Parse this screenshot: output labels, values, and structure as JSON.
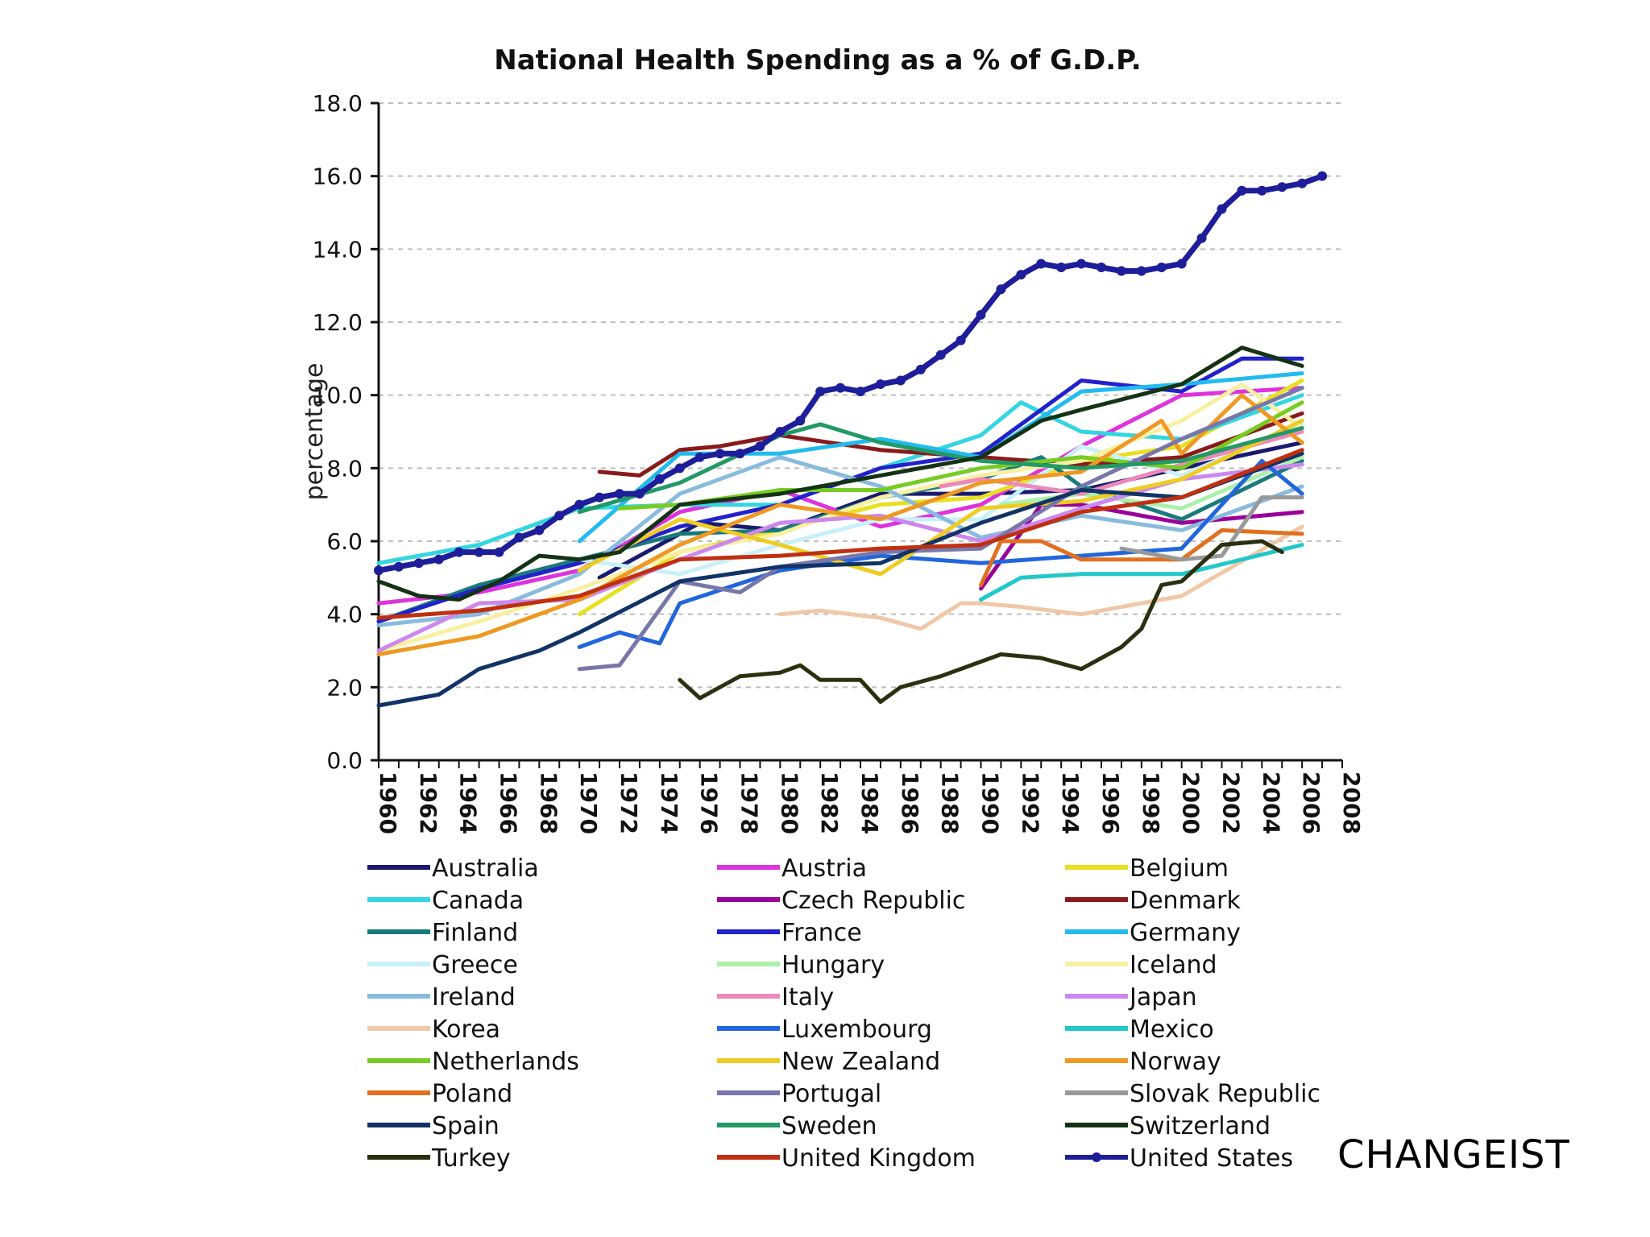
{
  "watermark": "CHANGEIST",
  "chart_data": {
    "type": "line",
    "title": "National Health Spending as a % of G.D.P.",
    "xlabel": "",
    "ylabel": "percentage",
    "ylim": [
      0,
      18
    ],
    "xlim": [
      1960,
      2008
    ],
    "yticks": [
      "0.0",
      "2.0",
      "4.0",
      "6.0",
      "8.0",
      "10.0",
      "12.0",
      "14.0",
      "16.0",
      "18.0"
    ],
    "xticks": [
      "1960",
      "1962",
      "1964",
      "1966",
      "1968",
      "1970",
      "1972",
      "1974",
      "1976",
      "1978",
      "1980",
      "1982",
      "1984",
      "1986",
      "1988",
      "1990",
      "1992",
      "1994",
      "1996",
      "1998",
      "2000",
      "2002",
      "2004",
      "2006",
      "2008"
    ],
    "grid": "horizontal dashed",
    "legend_position": "bottom",
    "series": [
      {
        "name": "Australia",
        "color": "#1a1a6e",
        "x": [
          1971,
          1976,
          1980,
          1985,
          1990,
          1995,
          2000,
          2006
        ],
        "values": [
          5.0,
          6.5,
          6.3,
          7.3,
          7.3,
          7.4,
          8.0,
          8.7
        ]
      },
      {
        "name": "Austria",
        "color": "#dd33dd",
        "x": [
          1960,
          1965,
          1970,
          1975,
          1980,
          1985,
          1990,
          1995,
          2000,
          2006
        ],
        "values": [
          4.3,
          4.6,
          5.2,
          6.8,
          7.4,
          6.4,
          7.0,
          8.6,
          10.0,
          10.2
        ]
      },
      {
        "name": "Belgium",
        "color": "#e8e020",
        "x": [
          1970,
          1975,
          1980,
          1985,
          1990,
          1995,
          2000,
          2006
        ],
        "values": [
          4.0,
          5.7,
          6.3,
          7.0,
          7.2,
          8.2,
          8.6,
          10.4
        ]
      },
      {
        "name": "Canada",
        "color": "#33d6e0",
        "x": [
          1960,
          1965,
          1970,
          1975,
          1980,
          1985,
          1990,
          1992,
          1995,
          2000,
          2006
        ],
        "values": [
          5.4,
          5.9,
          6.9,
          7.0,
          7.0,
          8.0,
          8.9,
          9.8,
          9.0,
          8.8,
          10.0
        ]
      },
      {
        "name": "Czech Republic",
        "color": "#990099",
        "x": [
          1990,
          1993,
          1995,
          2000,
          2006
        ],
        "values": [
          4.7,
          7.0,
          7.0,
          6.5,
          6.8
        ]
      },
      {
        "name": "Denmark",
        "color": "#8a1a1a",
        "x": [
          1971,
          1973,
          1975,
          1977,
          1980,
          1985,
          1990,
          1995,
          2000,
          2006
        ],
        "values": [
          7.9,
          7.8,
          8.5,
          8.6,
          8.9,
          8.5,
          8.3,
          8.1,
          8.3,
          9.5
        ]
      },
      {
        "name": "Finland",
        "color": "#1a7a7a",
        "x": [
          1960,
          1965,
          1970,
          1975,
          1980,
          1985,
          1990,
          1993,
          1995,
          2000,
          2006
        ],
        "values": [
          3.8,
          4.8,
          5.5,
          6.2,
          6.3,
          7.2,
          7.7,
          8.3,
          7.5,
          6.6,
          8.2
        ]
      },
      {
        "name": "France",
        "color": "#2222cc",
        "x": [
          1960,
          1965,
          1970,
          1975,
          1980,
          1985,
          1990,
          1995,
          2000,
          2003,
          2006
        ],
        "values": [
          3.8,
          4.7,
          5.4,
          6.4,
          7.0,
          8.0,
          8.4,
          10.4,
          10.1,
          11.0,
          11.0
        ]
      },
      {
        "name": "Germany",
        "color": "#22bbee",
        "x": [
          1970,
          1975,
          1980,
          1985,
          1990,
          1995,
          2000,
          2006
        ],
        "values": [
          6.0,
          8.4,
          8.4,
          8.8,
          8.3,
          10.1,
          10.3,
          10.6
        ]
      },
      {
        "name": "Greece",
        "color": "#c8f0f8",
        "x": [
          1970,
          1975,
          1980,
          1985,
          1990,
          1995,
          2000,
          2006
        ],
        "values": [
          5.5,
          5.1,
          5.9,
          6.6,
          6.6,
          8.6,
          7.8,
          9.2
        ]
      },
      {
        "name": "Hungary",
        "color": "#aaf0aa",
        "x": [
          1991,
          1995,
          2000,
          2006
        ],
        "values": [
          7.0,
          7.3,
          6.9,
          8.3
        ]
      },
      {
        "name": "Iceland",
        "color": "#f8f0a0",
        "x": [
          1960,
          1965,
          1970,
          1975,
          1980,
          1985,
          1990,
          1995,
          2000,
          2003,
          2006
        ],
        "values": [
          3.0,
          3.8,
          4.7,
          5.7,
          6.2,
          7.2,
          7.8,
          8.2,
          9.3,
          10.3,
          9.1
        ]
      },
      {
        "name": "Ireland",
        "color": "#88bbdd",
        "x": [
          1960,
          1965,
          1970,
          1975,
          1980,
          1985,
          1990,
          1995,
          2000,
          2006
        ],
        "values": [
          3.7,
          4.0,
          5.1,
          7.3,
          8.3,
          7.5,
          6.1,
          6.7,
          6.3,
          7.5
        ]
      },
      {
        "name": "Italy",
        "color": "#ee88bb",
        "x": [
          1988,
          1990,
          1995,
          2000,
          2006
        ],
        "values": [
          7.5,
          7.7,
          7.3,
          8.1,
          9.0
        ]
      },
      {
        "name": "Japan",
        "color": "#cc88ee",
        "x": [
          1960,
          1965,
          1970,
          1975,
          1980,
          1985,
          1990,
          1995,
          2000,
          2006
        ],
        "values": [
          3.0,
          4.3,
          4.4,
          5.5,
          6.5,
          6.7,
          6.0,
          6.9,
          7.7,
          8.1
        ]
      },
      {
        "name": "Korea",
        "color": "#f0c8a8",
        "x": [
          1980,
          1982,
          1985,
          1987,
          1989,
          1990,
          1992,
          1995,
          2000,
          2006
        ],
        "values": [
          4.0,
          4.1,
          3.9,
          3.6,
          4.3,
          4.3,
          4.2,
          4.0,
          4.5,
          6.4
        ]
      },
      {
        "name": "Luxembourg",
        "color": "#2266dd",
        "x": [
          1970,
          1972,
          1974,
          1975,
          1980,
          1985,
          1990,
          1995,
          2000,
          2004,
          2006
        ],
        "values": [
          3.1,
          3.5,
          3.2,
          4.3,
          5.2,
          5.6,
          5.4,
          5.6,
          5.8,
          8.2,
          7.3
        ]
      },
      {
        "name": "Mexico",
        "color": "#22c8c8",
        "x": [
          1990,
          1992,
          1995,
          2000,
          2006
        ],
        "values": [
          4.4,
          5.0,
          5.1,
          5.1,
          5.9
        ]
      },
      {
        "name": "Netherlands",
        "color": "#77cc22",
        "x": [
          1972,
          1975,
          1980,
          1985,
          1990,
          1995,
          2000,
          2006
        ],
        "values": [
          6.9,
          7.0,
          7.4,
          7.4,
          8.0,
          8.3,
          8.0,
          9.8
        ]
      },
      {
        "name": "New Zealand",
        "color": "#eecc22",
        "x": [
          1970,
          1975,
          1980,
          1985,
          1990,
          1995,
          2000,
          2006
        ],
        "values": [
          5.2,
          6.6,
          5.9,
          5.1,
          6.9,
          7.1,
          7.7,
          9.3
        ]
      },
      {
        "name": "Norway",
        "color": "#ee9922",
        "x": [
          1960,
          1965,
          1970,
          1975,
          1980,
          1985,
          1990,
          1995,
          1999,
          2000,
          2003,
          2006
        ],
        "values": [
          2.9,
          3.4,
          4.4,
          5.9,
          7.0,
          6.6,
          7.6,
          7.9,
          9.3,
          8.4,
          10.0,
          8.7
        ]
      },
      {
        "name": "Poland",
        "color": "#e07020",
        "x": [
          1990,
          1991,
          1993,
          1995,
          2000,
          2002,
          2006
        ],
        "values": [
          4.8,
          6.0,
          6.0,
          5.5,
          5.5,
          6.3,
          6.2
        ]
      },
      {
        "name": "Portugal",
        "color": "#7777aa",
        "x": [
          1970,
          1972,
          1975,
          1978,
          1980,
          1985,
          1990,
          1995,
          2000,
          2006
        ],
        "values": [
          2.5,
          2.6,
          4.9,
          4.6,
          5.3,
          5.7,
          5.8,
          7.5,
          8.8,
          10.2
        ]
      },
      {
        "name": "Slovak Republic",
        "color": "#999999",
        "x": [
          1997,
          2000,
          2002,
          2004,
          2006
        ],
        "values": [
          5.8,
          5.5,
          5.6,
          7.2,
          7.2
        ]
      },
      {
        "name": "Spain",
        "color": "#113366",
        "x": [
          1960,
          1963,
          1965,
          1968,
          1970,
          1975,
          1980,
          1985,
          1990,
          1995,
          2000,
          2006
        ],
        "values": [
          1.5,
          1.8,
          2.5,
          3.0,
          3.5,
          4.9,
          5.3,
          5.4,
          6.5,
          7.4,
          7.2,
          8.4
        ]
      },
      {
        "name": "Sweden",
        "color": "#229966",
        "x": [
          1970,
          1975,
          1980,
          1982,
          1985,
          1990,
          1995,
          2000,
          2006
        ],
        "values": [
          6.8,
          7.6,
          8.9,
          9.2,
          8.7,
          8.2,
          8.0,
          8.2,
          9.1
        ]
      },
      {
        "name": "Switzerland",
        "color": "#143214",
        "x": [
          1960,
          1962,
          1964,
          1966,
          1968,
          1970,
          1972,
          1975,
          1980,
          1985,
          1990,
          1993,
          1995,
          2000,
          2003,
          2006
        ],
        "values": [
          4.9,
          4.5,
          4.4,
          4.9,
          5.6,
          5.5,
          5.7,
          7.0,
          7.3,
          7.8,
          8.3,
          9.3,
          9.6,
          10.3,
          11.3,
          10.8
        ]
      },
      {
        "name": "Turkey",
        "color": "#2a3010",
        "x": [
          1975,
          1976,
          1978,
          1980,
          1981,
          1982,
          1984,
          1985,
          1986,
          1988,
          1991,
          1993,
          1995,
          1997,
          1998,
          1999,
          2000,
          2002,
          2004,
          2005
        ],
        "values": [
          2.2,
          1.7,
          2.3,
          2.4,
          2.6,
          2.2,
          2.2,
          1.6,
          2.0,
          2.3,
          2.9,
          2.8,
          2.5,
          3.1,
          3.6,
          4.8,
          4.9,
          5.9,
          6.0,
          5.7
        ]
      },
      {
        "name": "United Kingdom",
        "color": "#c03010",
        "x": [
          1960,
          1965,
          1970,
          1975,
          1980,
          1985,
          1990,
          1995,
          2000,
          2006
        ],
        "values": [
          3.9,
          4.1,
          4.5,
          5.5,
          5.6,
          5.8,
          5.9,
          6.8,
          7.2,
          8.5
        ]
      },
      {
        "name": "United States",
        "color": "#1e1e9a",
        "markers": true,
        "x": [
          1960,
          1961,
          1962,
          1963,
          1964,
          1965,
          1966,
          1967,
          1968,
          1969,
          1970,
          1971,
          1972,
          1973,
          1974,
          1975,
          1976,
          1977,
          1978,
          1979,
          1980,
          1981,
          1982,
          1983,
          1984,
          1985,
          1986,
          1987,
          1988,
          1989,
          1990,
          1991,
          1992,
          1993,
          1994,
          1995,
          1996,
          1997,
          1998,
          1999,
          2000,
          2001,
          2002,
          2003,
          2004,
          2005,
          2006,
          2007
        ],
        "values": [
          5.2,
          5.3,
          5.4,
          5.5,
          5.7,
          5.7,
          5.7,
          6.1,
          6.3,
          6.7,
          7.0,
          7.2,
          7.3,
          7.3,
          7.7,
          8.0,
          8.3,
          8.4,
          8.4,
          8.6,
          9.0,
          9.3,
          10.1,
          10.2,
          10.1,
          10.3,
          10.4,
          10.7,
          11.1,
          11.5,
          12.2,
          12.9,
          13.3,
          13.6,
          13.5,
          13.6,
          13.5,
          13.4,
          13.4,
          13.5,
          13.6,
          14.3,
          15.1,
          15.6,
          15.6,
          15.7,
          15.8,
          16.0
        ]
      }
    ]
  }
}
